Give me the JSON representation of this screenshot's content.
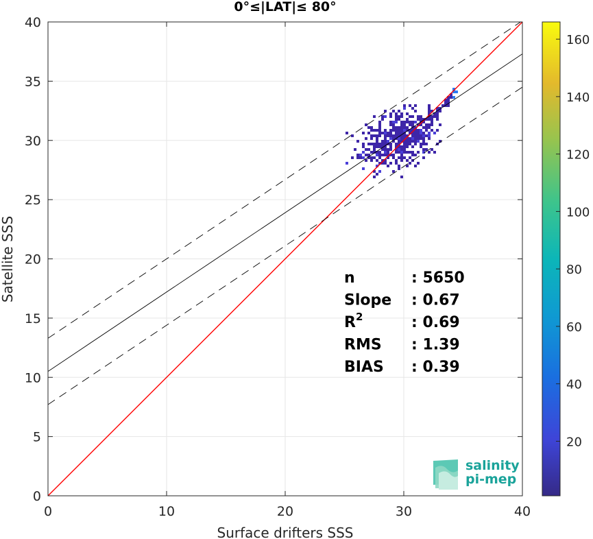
{
  "chart_data": {
    "type": "scatter",
    "title": "0°≤|LAT|≤ 80°",
    "xlabel": "Surface drifters SSS",
    "ylabel": "Satellite SSS",
    "xlim": [
      0,
      40
    ],
    "ylim": [
      0,
      40
    ],
    "xticks": [
      "0",
      "10",
      "20",
      "30",
      "40"
    ],
    "yticks": [
      "0",
      "5",
      "10",
      "15",
      "20",
      "25",
      "30",
      "35",
      "40"
    ],
    "grid": true,
    "lines": [
      {
        "name": "one-to-one",
        "color": "#ff0000",
        "style": "solid",
        "x": [
          0,
          40
        ],
        "y": [
          0,
          40
        ]
      },
      {
        "name": "regression",
        "color": "#000000",
        "style": "solid",
        "x": [
          0,
          40
        ],
        "y": [
          10.5,
          37.3
        ]
      },
      {
        "name": "regression-upper",
        "color": "#000000",
        "style": "dashed",
        "x": [
          0,
          40
        ],
        "y": [
          13.3,
          40.1
        ]
      },
      {
        "name": "regression-lower",
        "color": "#000000",
        "style": "dashed",
        "x": [
          0,
          40
        ],
        "y": [
          7.7,
          34.5
        ]
      }
    ],
    "density": {
      "description_range": {
        "x": [
          23,
          34.5
        ],
        "y": [
          27,
          34.4
        ]
      },
      "cluster_center": [
        29.5,
        30.2
      ],
      "cluster_spread": [
        1.7,
        1.1
      ],
      "tail": {
        "x": [
          32,
          34.4
        ],
        "y": [
          31.8,
          34.4
        ]
      },
      "low_color": "#3e26a8",
      "high_color": "#2c7bf0"
    },
    "stats": [
      {
        "label": "n",
        "value": ": 5650"
      },
      {
        "label": "Slope",
        "value": ": 0.67"
      },
      {
        "label": "R",
        "sup": "2",
        "value": ": 0.69"
      },
      {
        "label": "RMS",
        "value": ": 1.39"
      },
      {
        "label": "BIAS",
        "value": ": 0.39"
      }
    ],
    "colorbar": {
      "min": 1,
      "max": 166,
      "ticks": [
        "20",
        "40",
        "60",
        "80",
        "100",
        "120",
        "140",
        "160"
      ],
      "colormap": "parula",
      "placement": "right"
    }
  },
  "logo": {
    "line1": "salinity",
    "line2": "pi-mep",
    "color": "#1aa39a"
  }
}
